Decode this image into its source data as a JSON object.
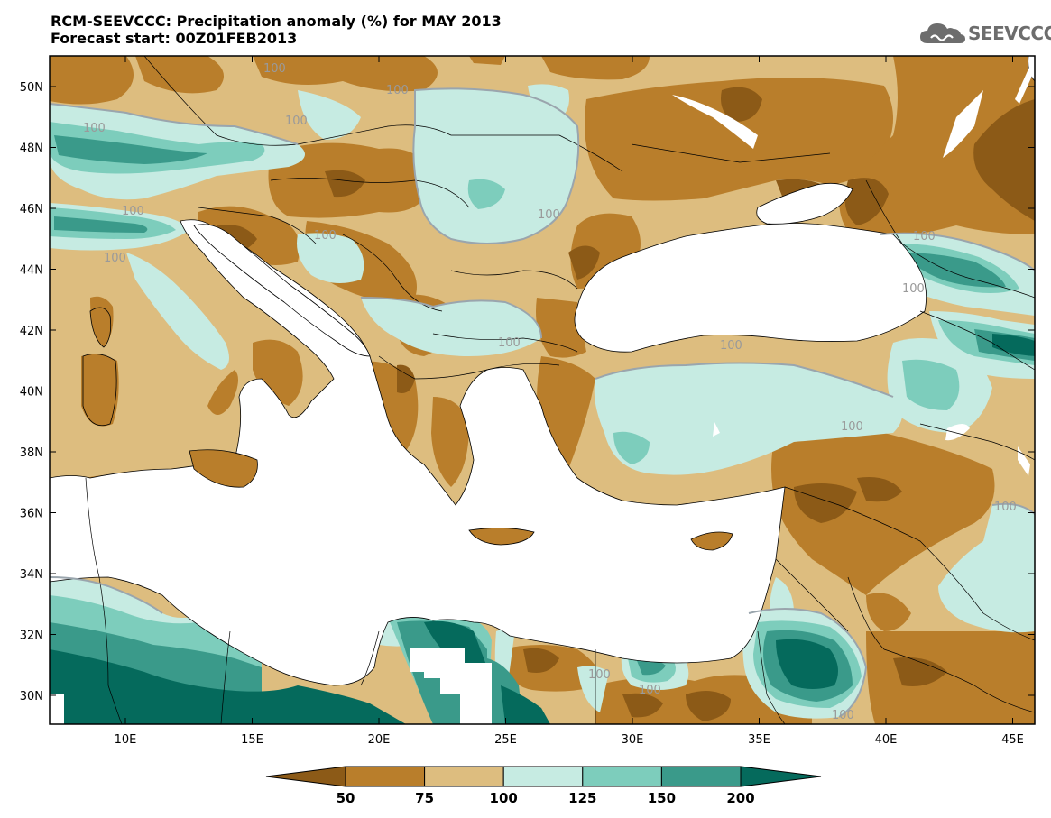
{
  "title": {
    "line1": "RCM-SEEVCCC: Precipitation anomaly (%) for MAY 2013",
    "line2": "Forecast start: 00Z01FEB2013"
  },
  "logo": {
    "text": "SEEVCCC",
    "icon": "cloud-logo-icon"
  },
  "colors": {
    "below50": "#8c5a17",
    "c50_75": "#b97e2b",
    "c75_100": "#ddbd7f",
    "c100_125": "#c6ebe2",
    "c125_150": "#7dcdbc",
    "c150_200": "#3a9a8a",
    "above200": "#056a5c",
    "sea": "#ffffff",
    "contour": "#9aa5ad"
  },
  "map": {
    "lat_labels": [
      "50N",
      "48N",
      "46N",
      "44N",
      "42N",
      "40N",
      "38N",
      "36N",
      "34N",
      "32N",
      "30N"
    ],
    "lon_labels": [
      "10E",
      "15E",
      "20E",
      "25E",
      "30E",
      "35E",
      "40E",
      "45E"
    ],
    "contour_labels": [
      "100",
      "100",
      "100",
      "100",
      "100",
      "100",
      "100",
      "100",
      "100",
      "100",
      "100",
      "100",
      "100",
      "100",
      "100",
      "100",
      "100"
    ]
  },
  "colorbar": {
    "labels": [
      "50",
      "75",
      "100",
      "125",
      "150",
      "200"
    ]
  }
}
